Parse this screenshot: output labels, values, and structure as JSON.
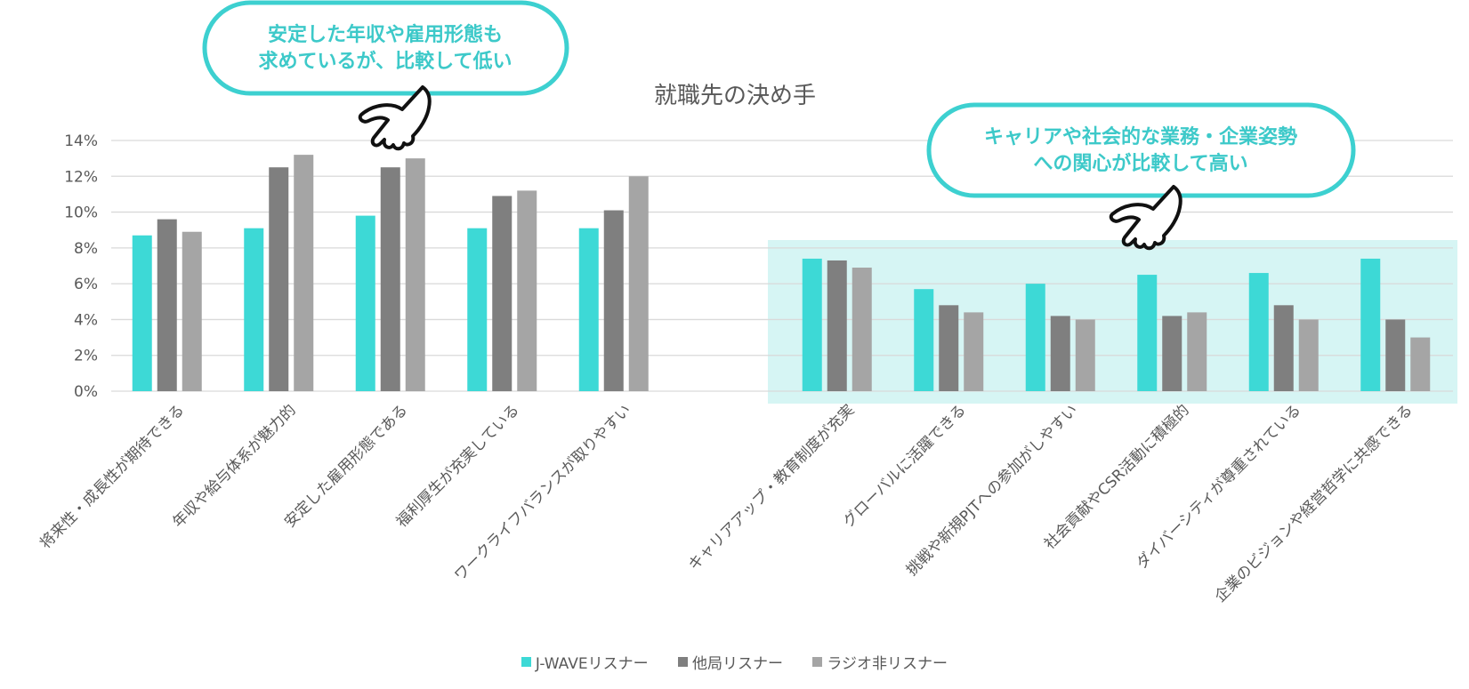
{
  "chart_data": {
    "type": "bar",
    "title": "就職先の決め手",
    "ylim": [
      0,
      14
    ],
    "yticks": [
      "0%",
      "2%",
      "4%",
      "6%",
      "8%",
      "10%",
      "12%",
      "14%"
    ],
    "grid": true,
    "legend_position": "bottom",
    "categories": [
      "将来性・成長性が期待できる",
      "年収や給与体系が魅力的",
      "安定した雇用形態である",
      "福利厚生が充実している",
      "ワークライフバランスが取りやすい",
      "キャリアアップ・教育制度が充実",
      "グローバルに活躍できる",
      "挑戦や新規PJTへの参加がしやすい",
      "社会貢献やCSR活動に積極的",
      "ダイバーシティが尊重されている",
      "企業のビジョンや経営哲学に共感できる"
    ],
    "series": [
      {
        "name": "J-WAVEリスナー",
        "color": "#3dd9d6",
        "values": [
          8.7,
          9.1,
          9.8,
          9.1,
          9.1,
          7.4,
          5.7,
          6.0,
          6.5,
          6.6,
          7.4
        ]
      },
      {
        "name": "他局リスナー",
        "color": "#7f7f7f",
        "values": [
          9.6,
          12.5,
          12.5,
          10.9,
          10.1,
          7.3,
          4.8,
          4.2,
          4.2,
          4.8,
          4.0
        ]
      },
      {
        "name": "ラジオ非リスナー",
        "color": "#a5a5a5",
        "values": [
          8.9,
          13.2,
          13.0,
          11.2,
          12.0,
          6.9,
          4.4,
          4.0,
          4.4,
          4.0,
          3.0
        ]
      }
    ],
    "highlight_categories": [
      5,
      6,
      7,
      8,
      9,
      10
    ],
    "highlight_color": "#d6f5f4"
  },
  "annotations": [
    {
      "lines": [
        "安定した年収や雇用形態も",
        "求めているが、比較して低い"
      ],
      "color": "#3dc9c9"
    },
    {
      "lines": [
        "キャリアや社会的な業務・企業姿勢",
        "への関心が比較して高い"
      ],
      "color": "#3dc9c9"
    }
  ]
}
